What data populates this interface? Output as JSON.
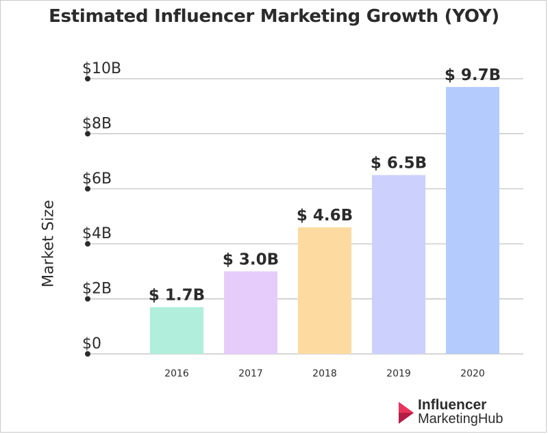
{
  "chart_data": {
    "type": "bar",
    "title": "Estimated Influencer Marketing Growth (YOY)",
    "ylabel": "Market Size",
    "xlabel": "",
    "categories": [
      "2016",
      "2017",
      "2018",
      "2019",
      "2020"
    ],
    "values": [
      1.7,
      3.0,
      4.6,
      6.5,
      9.7
    ],
    "value_labels": [
      "$ 1.7B",
      "$ 3.0B",
      "$ 4.6B",
      "$ 6.5B",
      "$ 9.7B"
    ],
    "colors": [
      "#b1eedc",
      "#e6ccfb",
      "#fddba0",
      "#cbd1fc",
      "#b3cbfd"
    ],
    "yticks": [
      0,
      2,
      4,
      6,
      8,
      10
    ],
    "ytick_labels": [
      "$0",
      "$2B",
      "$4B",
      "$6B",
      "$8B",
      "$10B"
    ],
    "ylim": [
      0,
      10
    ],
    "grid": true,
    "unit": "$B"
  },
  "brand": {
    "line1": "Influencer",
    "line2": "MarketingHub",
    "accent_colors": [
      "#e8335b",
      "#b51d45"
    ]
  }
}
